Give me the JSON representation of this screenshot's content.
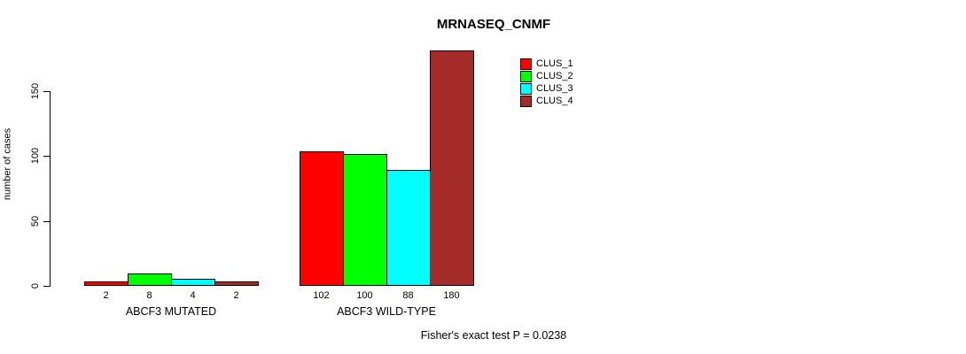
{
  "chart_data": {
    "type": "bar",
    "title": "MRNASEQ_CNMF",
    "ylabel": "number of cases",
    "xlabel": "",
    "ylim": [
      0,
      180
    ],
    "yticks": [
      0,
      50,
      100,
      150
    ],
    "grid": false,
    "legend_position": "top-right",
    "categories": [
      "ABCF3 MUTATED",
      "ABCF3 WILD-TYPE"
    ],
    "series": [
      {
        "name": "CLUS_1",
        "color": "#ff0000",
        "values": [
          2,
          102
        ]
      },
      {
        "name": "CLUS_2",
        "color": "#00ff00",
        "values": [
          8,
          100
        ]
      },
      {
        "name": "CLUS_3",
        "color": "#00ffff",
        "values": [
          4,
          88
        ]
      },
      {
        "name": "CLUS_4",
        "color": "#a52a2a",
        "values": [
          2,
          180
        ]
      }
    ],
    "bar_value_labels": {
      "ABCF3 MUTATED": [
        2,
        8,
        4,
        2
      ],
      "ABCF3 WILD-TYPE": [
        102,
        100,
        88,
        180
      ]
    },
    "legend": [
      {
        "label": "CLUS_1",
        "color": "#ff0000"
      },
      {
        "label": "CLUS_2",
        "color": "#00ff00"
      },
      {
        "label": "CLUS_3",
        "color": "#00ffff"
      },
      {
        "label": "CLUS_4",
        "color": "#a52a2a"
      }
    ],
    "annotation": "Fisher's exact test P = 0.0238",
    "axis_color": "#000000",
    "bar_border_color": "#000000"
  }
}
